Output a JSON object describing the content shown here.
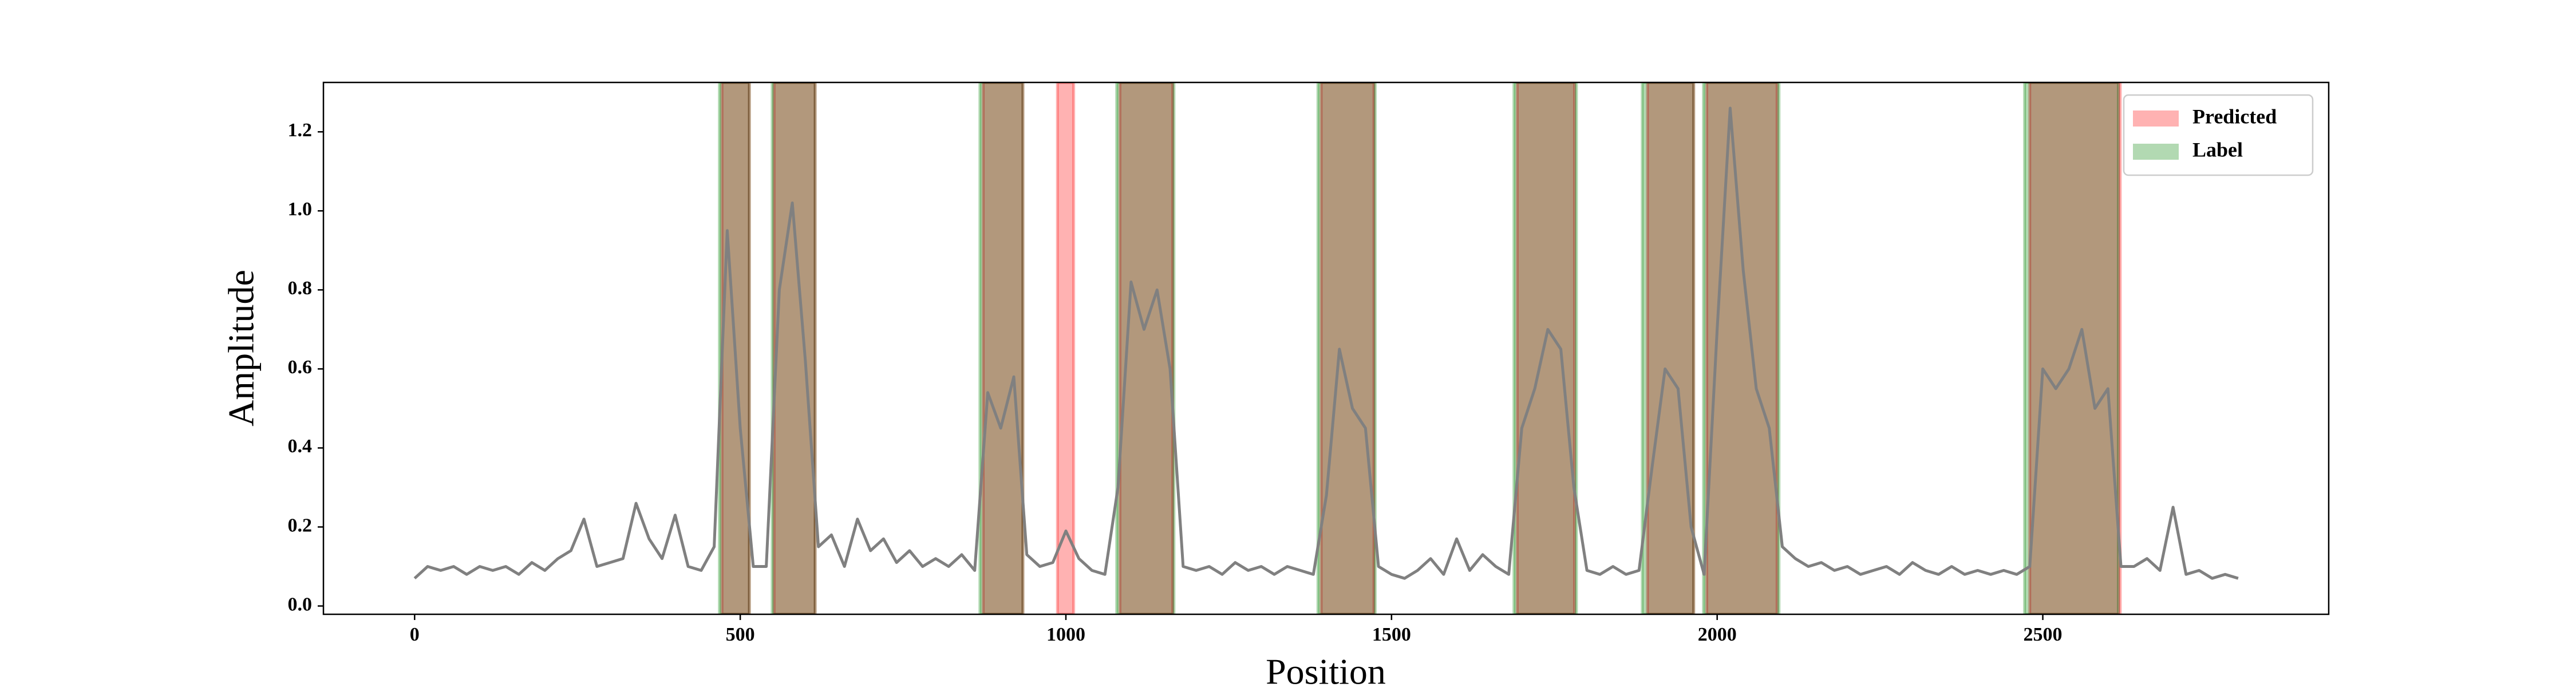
{
  "chart_data": {
    "type": "line",
    "xlabel": "Position",
    "ylabel": "Amplitude",
    "color": "#808080",
    "x": [
      0,
      20,
      40,
      60,
      80,
      100,
      120,
      140,
      160,
      180,
      200,
      220,
      240,
      260,
      280,
      300,
      320,
      340,
      360,
      380,
      400,
      420,
      440,
      460,
      480,
      500,
      520,
      540,
      560,
      580,
      600,
      620,
      640,
      660,
      680,
      700,
      720,
      740,
      760,
      780,
      800,
      820,
      840,
      860,
      880,
      900,
      920,
      940,
      960,
      980,
      1000,
      1020,
      1040,
      1060,
      1080,
      1100,
      1120,
      1140,
      1160,
      1180,
      1200,
      1220,
      1240,
      1260,
      1280,
      1300,
      1320,
      1340,
      1360,
      1380,
      1400,
      1420,
      1440,
      1460,
      1480,
      1500,
      1520,
      1540,
      1560,
      1580,
      1600,
      1620,
      1640,
      1660,
      1680,
      1700,
      1720,
      1740,
      1760,
      1780,
      1800,
      1820,
      1840,
      1860,
      1880,
      1900,
      1920,
      1940,
      1960,
      1980,
      2000,
      2020,
      2040,
      2060,
      2080,
      2100,
      2120,
      2140,
      2160,
      2180,
      2200,
      2220,
      2240,
      2260,
      2280,
      2300,
      2320,
      2340,
      2360,
      2380,
      2400,
      2420,
      2440,
      2460,
      2480,
      2500,
      2520,
      2540,
      2560,
      2580,
      2600,
      2620,
      2640,
      2660,
      2680,
      2700,
      2720,
      2740,
      2760,
      2780,
      2800
    ],
    "values": [
      0.07,
      0.1,
      0.09,
      0.1,
      0.08,
      0.1,
      0.09,
      0.1,
      0.08,
      0.11,
      0.09,
      0.12,
      0.14,
      0.22,
      0.1,
      0.11,
      0.12,
      0.26,
      0.17,
      0.12,
      0.23,
      0.1,
      0.09,
      0.15,
      0.95,
      0.45,
      0.1,
      0.1,
      0.8,
      1.02,
      0.62,
      0.15,
      0.18,
      0.1,
      0.22,
      0.14,
      0.17,
      0.11,
      0.14,
      0.1,
      0.12,
      0.1,
      0.13,
      0.09,
      0.54,
      0.45,
      0.58,
      0.13,
      0.1,
      0.11,
      0.19,
      0.12,
      0.09,
      0.08,
      0.3,
      0.82,
      0.7,
      0.8,
      0.6,
      0.1,
      0.09,
      0.1,
      0.08,
      0.11,
      0.09,
      0.1,
      0.08,
      0.1,
      0.09,
      0.08,
      0.28,
      0.65,
      0.5,
      0.45,
      0.1,
      0.08,
      0.07,
      0.09,
      0.12,
      0.08,
      0.17,
      0.09,
      0.13,
      0.1,
      0.08,
      0.45,
      0.55,
      0.7,
      0.65,
      0.3,
      0.09,
      0.08,
      0.1,
      0.08,
      0.09,
      0.35,
      0.6,
      0.55,
      0.2,
      0.08,
      0.7,
      1.26,
      0.85,
      0.55,
      0.45,
      0.15,
      0.12,
      0.1,
      0.11,
      0.09,
      0.1,
      0.08,
      0.09,
      0.1,
      0.08,
      0.11,
      0.09,
      0.08,
      0.1,
      0.08,
      0.09,
      0.08,
      0.09,
      0.08,
      0.1,
      0.6,
      0.55,
      0.6,
      0.7,
      0.5,
      0.55,
      0.1,
      0.1,
      0.12,
      0.09,
      0.25,
      0.08,
      0.09,
      0.07,
      0.08,
      0.07
    ],
    "spans": [
      {
        "name": "Predicted",
        "color": "#ff0000",
        "ranges": [
          [
            472,
            514
          ],
          [
            552,
            615
          ],
          [
            873,
            934
          ],
          [
            1083,
            1164
          ],
          [
            1392,
            1473
          ],
          [
            1693,
            1781
          ],
          [
            1893,
            1964
          ],
          [
            1984,
            2092
          ],
          [
            2480,
            2619
          ],
          [
            987,
            1012
          ]
        ]
      },
      {
        "name": "Label",
        "color": "#008000",
        "ranges": [
          [
            468,
            514
          ],
          [
            549,
            615
          ],
          [
            868,
            934
          ],
          [
            1078,
            1166
          ],
          [
            1387,
            1475
          ],
          [
            1688,
            1784
          ],
          [
            1885,
            1964
          ],
          [
            1979,
            2095
          ],
          [
            2472,
            2616
          ]
        ]
      }
    ],
    "legend": "upper right",
    "xlim": [
      -140,
      2939
    ],
    "ylim": [
      -0.021,
      1.325
    ],
    "xticks": [
      0,
      500,
      1000,
      1500,
      2000,
      2500
    ],
    "yticks": [
      {
        "value": 0,
        "label": "0.0"
      },
      {
        "value": 0.2,
        "label": "0.2"
      },
      {
        "value": 0.4,
        "label": "0.4"
      },
      {
        "value": 0.6,
        "label": "0.6"
      },
      {
        "value": 0.8,
        "label": "0.8"
      },
      {
        "value": 1,
        "label": "1.0"
      },
      {
        "value": 1.2,
        "label": "1.2"
      }
    ]
  }
}
